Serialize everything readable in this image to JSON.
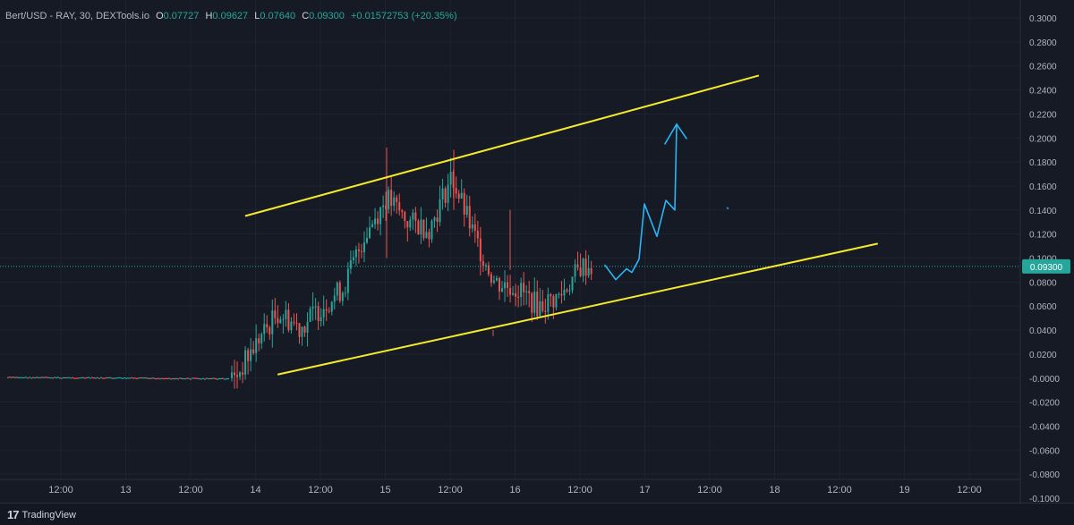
{
  "legend": {
    "symbol": "Bert/USD - RAY, 30, DEXTools.io",
    "open_label": "O",
    "open": "0.07727",
    "high_label": "H",
    "high": "0.09627",
    "low_label": "L",
    "low": "0.07640",
    "close_label": "C",
    "close": "0.09300",
    "change": "+0.01572753 (+20.35%)"
  },
  "branding": {
    "name": "TradingView"
  },
  "colors": {
    "background": "#161a25",
    "up": "#26a69a",
    "down": "#ef5350",
    "trendline": "#f5e92c",
    "projection": "#29b6f6",
    "axis_text": "#b2b5be",
    "price_label_bg": "#26a69a"
  },
  "chart_data": {
    "type": "candlestick",
    "title": "Bert/USD - RAY, 30, DEXTools.io",
    "x_tick_labels": [
      "12:00",
      "13",
      "12:00",
      "14",
      "12:00",
      "15",
      "12:00",
      "16",
      "12:00",
      "17",
      "12:00",
      "18",
      "12:00",
      "19",
      "12:00"
    ],
    "y_tick_labels": [
      "0.3000",
      "0.2800",
      "0.2600",
      "0.2400",
      "0.2200",
      "0.2000",
      "0.1800",
      "0.1600",
      "0.1400",
      "0.1200",
      "0.1000",
      "0.0800",
      "0.0600",
      "0.0400",
      "0.0200",
      "-0.0000",
      "-0.0200",
      "-0.0400",
      "-0.0600",
      "-0.0800",
      "-0.1000"
    ],
    "ylim": [
      -0.1,
      0.3
    ],
    "last_price": "0.09300",
    "grid": true,
    "price_path": [
      [
        "13 00:00",
        0.0
      ],
      [
        "13 12:00",
        0.0
      ],
      [
        "13 20:00",
        0.0
      ],
      [
        "14 00:00",
        0.03
      ],
      [
        "14 04:00",
        0.055
      ],
      [
        "14 08:00",
        0.042
      ],
      [
        "14 12:00",
        0.06
      ],
      [
        "14 16:00",
        0.075
      ],
      [
        "14 20:00",
        0.12
      ],
      [
        "15 00:00",
        0.15
      ],
      [
        "15 04:00",
        0.13
      ],
      [
        "15 08:00",
        0.125
      ],
      [
        "15 12:00",
        0.168
      ],
      [
        "15 16:00",
        0.12
      ],
      [
        "15 20:00",
        0.08
      ],
      [
        "16 00:00",
        0.075
      ],
      [
        "16 04:00",
        0.06
      ],
      [
        "16 08:00",
        0.068
      ],
      [
        "16 12:00",
        0.093
      ]
    ],
    "trend_channel": {
      "upper": [
        [
          "13 22:00",
          0.135
        ],
        [
          "17 21:00",
          0.252
        ]
      ],
      "lower": [
        [
          "14 04:00",
          0.003
        ],
        [
          "18 19:00",
          0.112
        ]
      ]
    },
    "projection": [
      [
        0.094,
        0.082,
        0.091,
        0.088,
        0.099,
        0.145,
        0.118,
        0.148,
        0.14,
        0.21
      ]
    ]
  }
}
